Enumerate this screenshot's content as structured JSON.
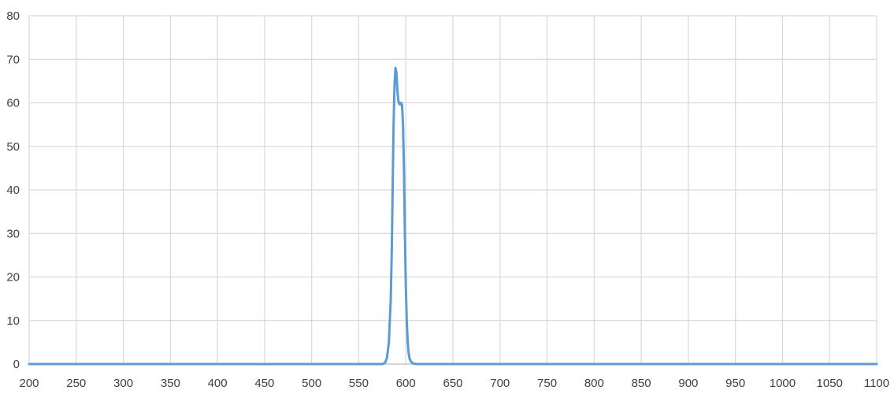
{
  "chart_data": {
    "type": "line",
    "title": "",
    "xlabel": "",
    "ylabel": "",
    "xlim": [
      200,
      1100
    ],
    "ylim": [
      0,
      80
    ],
    "x_ticks": [
      "200",
      "250",
      "300",
      "350",
      "400",
      "450",
      "500",
      "550",
      "600",
      "650",
      "700",
      "750",
      "800",
      "850",
      "900",
      "950",
      "1000",
      "1050",
      "1100"
    ],
    "y_ticks": [
      "0",
      "10",
      "20",
      "30",
      "40",
      "50",
      "60",
      "70",
      "80"
    ],
    "grid": true,
    "legend": "none",
    "series": [
      {
        "color": "#5B9BD5",
        "x": [
          200,
          560,
          575,
          578,
          580,
          582,
          584,
          585,
          586,
          587,
          588,
          589,
          590,
          591,
          592,
          593,
          594,
          595,
          596,
          597,
          598,
          599,
          600,
          601,
          602,
          603,
          604,
          606,
          608,
          612,
          620,
          1100
        ],
        "y": [
          0,
          0,
          0,
          0.3,
          1.5,
          5,
          15,
          25,
          40,
          55,
          64,
          68,
          67,
          63,
          60.5,
          59.8,
          59.6,
          60,
          59.5,
          55,
          45,
          30,
          18,
          10,
          5,
          2.5,
          1.2,
          0.4,
          0.1,
          0,
          0,
          0
        ]
      }
    ],
    "colors": {
      "grid": "#d9d9d9",
      "axis": "#bfbfbf",
      "tick_text": "#404040"
    }
  }
}
